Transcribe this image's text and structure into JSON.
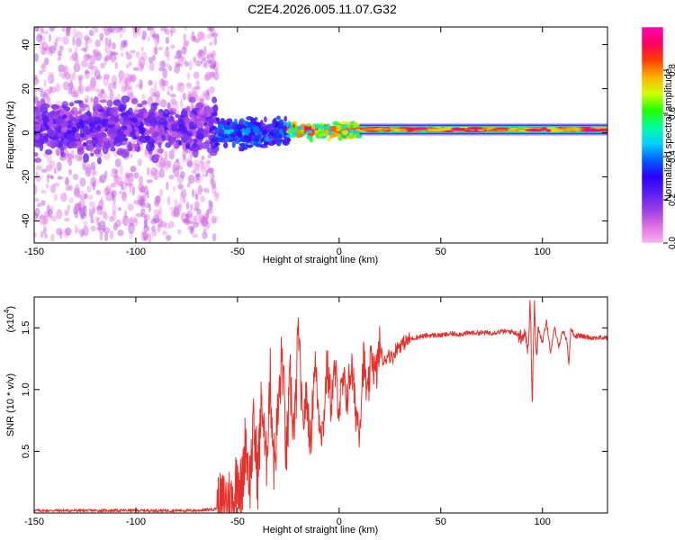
{
  "title": "C2E4.2026.005.11.07.G32",
  "colors": {
    "line": "#e8302a",
    "colormap": [
      "#f6b6f0",
      "#e070e0",
      "#9a3de8",
      "#5a1ef0",
      "#2d00ff",
      "#0060ff",
      "#00d2ff",
      "#00ff9a",
      "#24ff00",
      "#d2ff00",
      "#ffb000",
      "#ff4000",
      "#ff0060",
      "#ff00b4"
    ]
  },
  "chart_data": [
    {
      "type": "heatmap",
      "name": "spectrogram",
      "xlabel": "Height of straight line (km)",
      "ylabel": "Frequency (Hz)",
      "xlim": [
        -150,
        132
      ],
      "ylim": [
        -50,
        48
      ],
      "x_ticks": [
        -150,
        -100,
        -50,
        0,
        50,
        100
      ],
      "x_tick_labels": [
        "-150",
        "-100",
        "-50",
        "0",
        "50",
        "100"
      ],
      "y_ticks": [
        -40,
        -20,
        0,
        20,
        40
      ],
      "y_tick_labels": [
        "-40",
        "-20",
        "0",
        "20",
        "40"
      ],
      "colorbar": {
        "label": "Normalized spectral amplitude",
        "range": [
          0,
          1
        ],
        "ticks": [
          0.0,
          0.2,
          0.4,
          0.6,
          0.8
        ],
        "tick_labels": [
          "0.0",
          "0.2",
          "0.4",
          "0.6",
          "0.8"
        ]
      },
      "band_summary": [
        {
          "x": [
            -150,
            -60
          ],
          "center_hz": 2,
          "core_halfwidth_hz": 10,
          "scatter_halfwidth_hz": 50,
          "amplitude": [
            0.1,
            0.3
          ]
        },
        {
          "x": [
            -60,
            -25
          ],
          "center_hz": 0,
          "core_halfwidth_hz": 6,
          "amplitude": [
            0.2,
            0.5
          ]
        },
        {
          "x": [
            -25,
            10
          ],
          "center_hz": 1,
          "core_halfwidth_hz": 3,
          "amplitude": [
            0.4,
            1.0
          ]
        },
        {
          "x": [
            10,
            132
          ],
          "center_hz": 1.5,
          "core_halfwidth_hz": 2,
          "amplitude": [
            0.5,
            1.0
          ]
        }
      ]
    },
    {
      "type": "line",
      "name": "snr",
      "xlabel": "Height of straight line (km)",
      "ylabel": "SNR (10 * v/v)",
      "y_multiplier_label": "(x10",
      "y_multiplier_exp": "4",
      "xlim": [
        -150,
        132
      ],
      "ylim": [
        0,
        1.75
      ],
      "x_ticks": [
        -150,
        -100,
        -50,
        0,
        50,
        100
      ],
      "x_tick_labels": [
        "-150",
        "-100",
        "-50",
        "0",
        "50",
        "100"
      ],
      "y_ticks": [
        0.5,
        1.0,
        1.5
      ],
      "y_tick_labels": [
        "0.5",
        "1.0",
        "1.5"
      ],
      "series": [
        {
          "name": "SNR",
          "x": [
            -150,
            -140,
            -130,
            -120,
            -110,
            -100,
            -90,
            -80,
            -70,
            -62,
            -58,
            -55,
            -52,
            -50,
            -48,
            -46,
            -44,
            -42,
            -40,
            -38,
            -36,
            -34,
            -32,
            -30,
            -28,
            -26,
            -24,
            -22,
            -20,
            -18,
            -16,
            -14,
            -12,
            -10,
            -8,
            -6,
            -4,
            -2,
            0,
            2,
            4,
            6,
            8,
            10,
            12,
            14,
            16,
            18,
            20,
            22,
            24,
            26,
            28,
            30,
            32,
            35,
            40,
            45,
            50,
            55,
            60,
            65,
            70,
            75,
            80,
            85,
            88,
            90,
            92,
            93,
            94,
            95,
            96,
            97,
            98,
            100,
            102,
            104,
            106,
            108,
            110,
            112,
            113,
            114,
            116,
            118,
            120,
            125,
            132
          ],
          "values": [
            0.02,
            0.02,
            0.02,
            0.02,
            0.02,
            0.02,
            0.02,
            0.02,
            0.02,
            0.03,
            0.05,
            0.12,
            0.08,
            0.35,
            0.15,
            0.6,
            0.25,
            0.7,
            0.3,
            0.95,
            0.35,
            1.1,
            0.4,
            0.8,
            1.3,
            0.45,
            1.05,
            0.6,
            1.5,
            0.7,
            0.95,
            0.55,
            1.25,
            0.8,
            0.65,
            1.2,
            0.9,
            1.15,
            0.85,
            1.05,
            0.95,
            1.2,
            0.85,
            0.7,
            1.25,
            0.9,
            1.3,
            1.1,
            1.35,
            1.2,
            1.3,
            1.25,
            1.33,
            1.36,
            1.38,
            1.41,
            1.43,
            1.44,
            1.44,
            1.45,
            1.45,
            1.46,
            1.46,
            1.46,
            1.47,
            1.47,
            1.45,
            1.42,
            1.44,
            1.3,
            1.75,
            0.9,
            1.7,
            1.25,
            1.5,
            1.38,
            1.55,
            1.3,
            1.5,
            1.35,
            1.48,
            1.4,
            1.2,
            1.5,
            1.43,
            1.44,
            1.43,
            1.42,
            1.42
          ]
        }
      ]
    }
  ]
}
